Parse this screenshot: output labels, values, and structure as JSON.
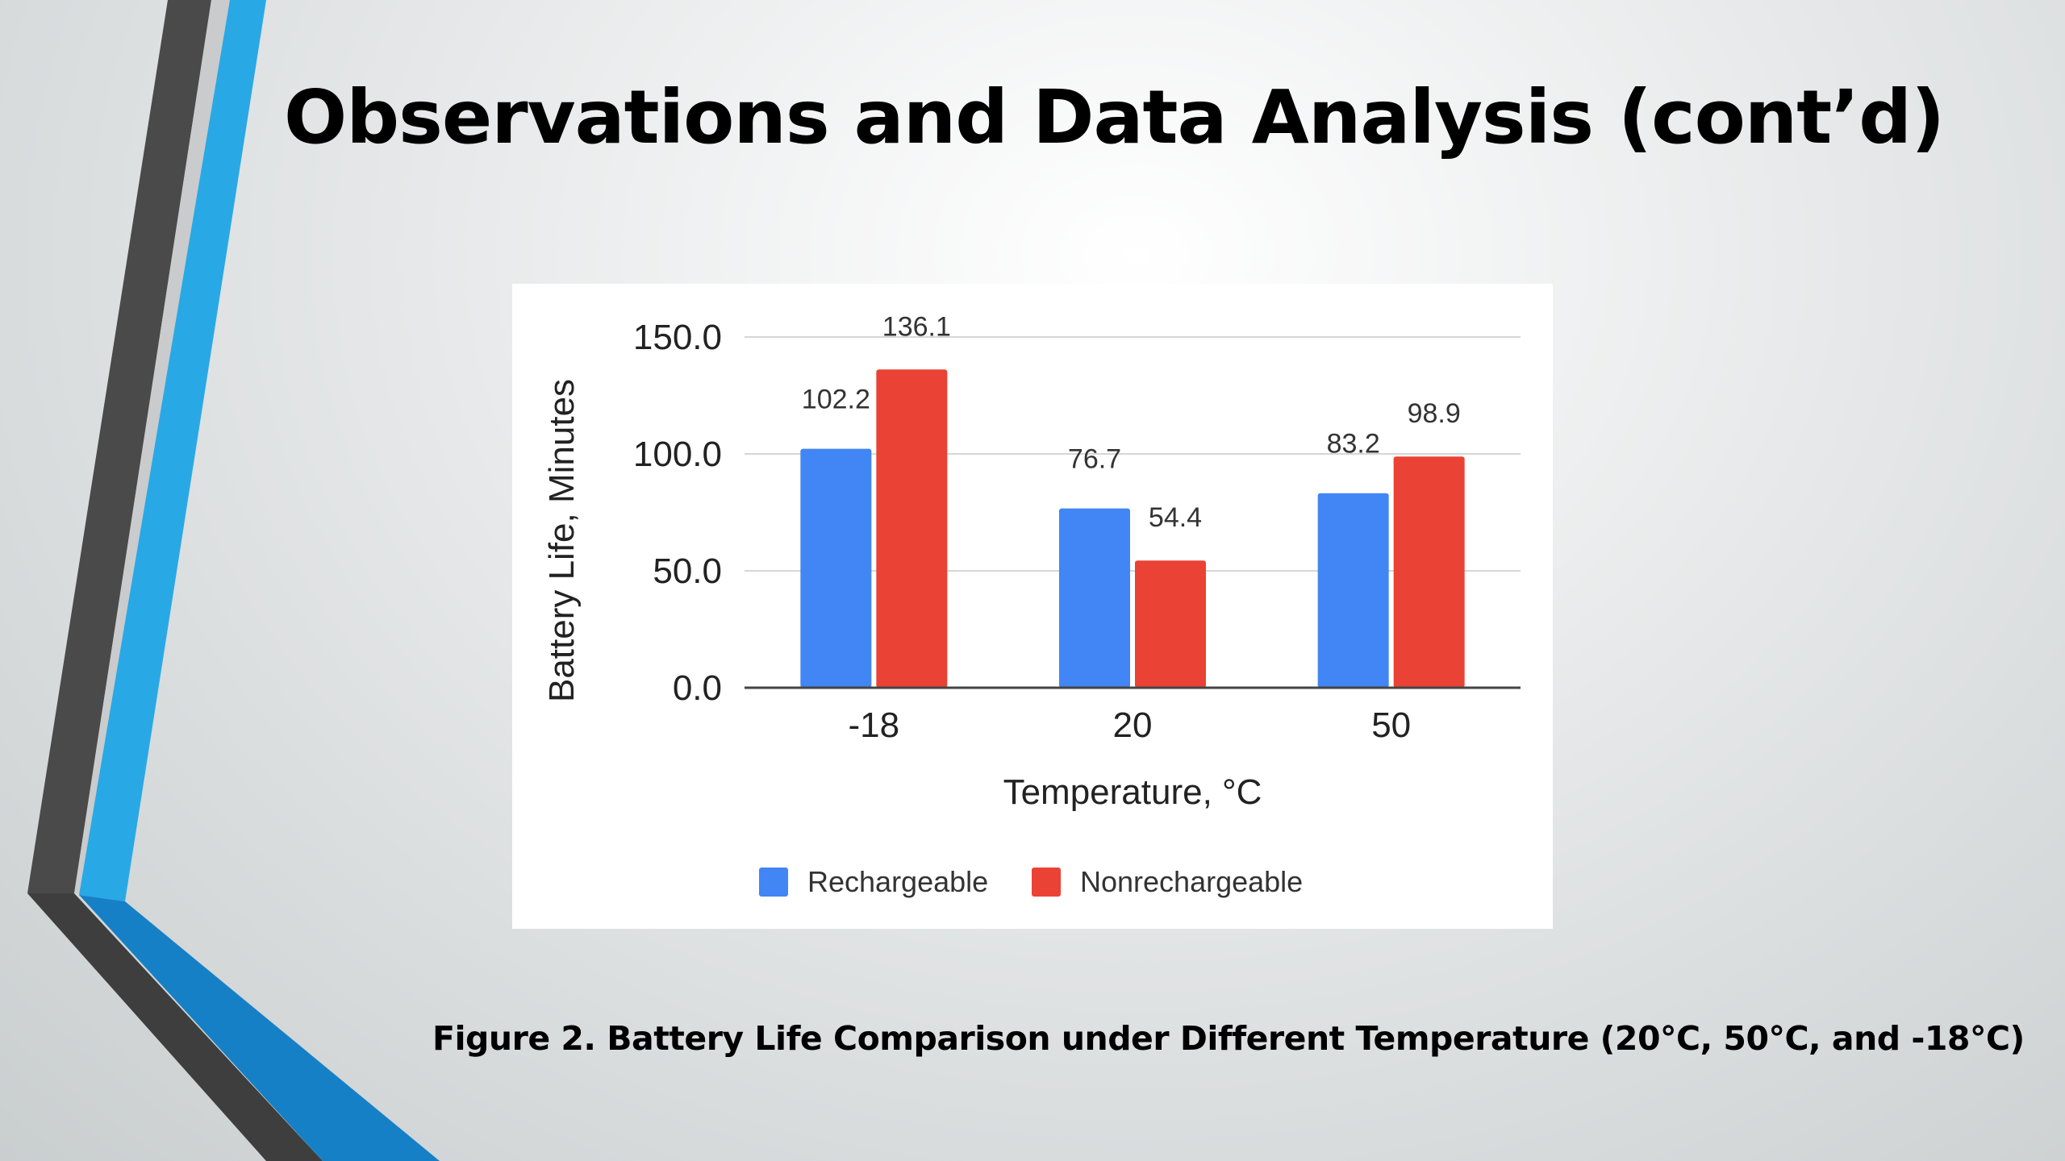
{
  "slide": {
    "title": "Observations and Data Analysis (cont’d)",
    "caption": "Figure 2. Battery Life Comparison under Different Temperature (20°C, 50°C, and -18°C)"
  },
  "colors": {
    "accent_blue": "#29a8e6",
    "deco_dark": "#4a4a4a",
    "deco_deep_blue": "#1680c6"
  },
  "chart_data": {
    "type": "bar",
    "categories": [
      "-18",
      "20",
      "50"
    ],
    "series": [
      {
        "name": "Rechargeable",
        "values": [
          102.2,
          76.7,
          83.2
        ],
        "labels": [
          "102.2",
          "76.7",
          "83.2"
        ],
        "color": "#4285f4"
      },
      {
        "name": "Nonrechargeable",
        "values": [
          136.1,
          54.4,
          98.9
        ],
        "labels": [
          "136.1",
          "54.4",
          "98.9"
        ],
        "color": "#ea4335"
      }
    ],
    "ylim": [
      0,
      150
    ],
    "yticks": [
      0,
      50,
      100,
      150
    ],
    "ytick_labels": [
      "0.0",
      "50.0",
      "100.0",
      "150.0"
    ],
    "xlabel": "Temperature, °C",
    "ylabel": "Battery Life, Minutes",
    "grid": true,
    "legend": "bottom"
  }
}
